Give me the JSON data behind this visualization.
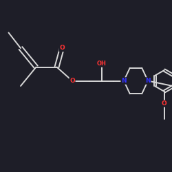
{
  "background_color": "#1e1e28",
  "bond_color": "#d8d8d8",
  "atom_colors": {
    "O": "#ff3333",
    "N": "#3333ff",
    "C": "#d8d8d8"
  },
  "figsize": [
    2.5,
    2.5
  ],
  "dpi": 100
}
